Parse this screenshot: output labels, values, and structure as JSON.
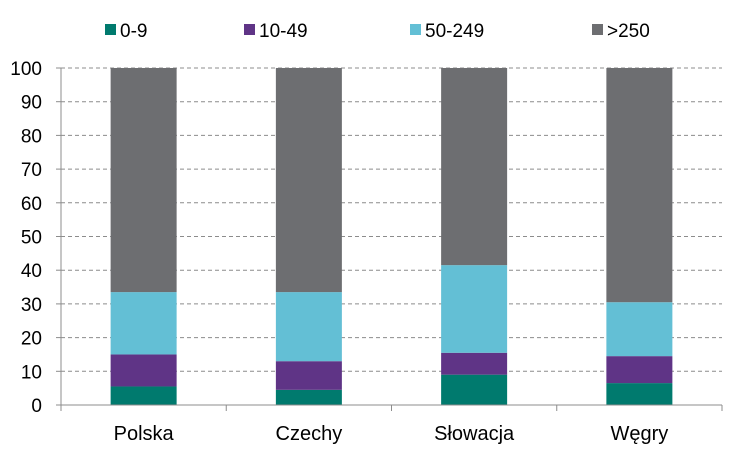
{
  "chart_data": {
    "type": "bar",
    "stacked": true,
    "categories": [
      "Polska",
      "Czechy",
      "Słowacja",
      "Węgry"
    ],
    "series": [
      {
        "name": "0-9",
        "color": "#007A6E",
        "values": [
          5.5,
          4.5,
          9.0,
          6.5
        ]
      },
      {
        "name": "10-49",
        "color": "#5F3486",
        "values": [
          9.5,
          8.5,
          6.5,
          8.0
        ]
      },
      {
        "name": "50-249",
        "color": "#63BFD5",
        "values": [
          18.5,
          20.5,
          26.0,
          16.0
        ]
      },
      {
        "name": ">250",
        "color": "#6D6E71",
        "values": [
          66.5,
          66.5,
          58.5,
          69.5
        ]
      }
    ],
    "y_ticks": [
      "0",
      "10",
      "20",
      "30",
      "40",
      "50",
      "60",
      "70",
      "80",
      "90",
      "100"
    ],
    "ylim": [
      0,
      100
    ],
    "grid": "horizontal dashed",
    "legend_position": "top"
  }
}
